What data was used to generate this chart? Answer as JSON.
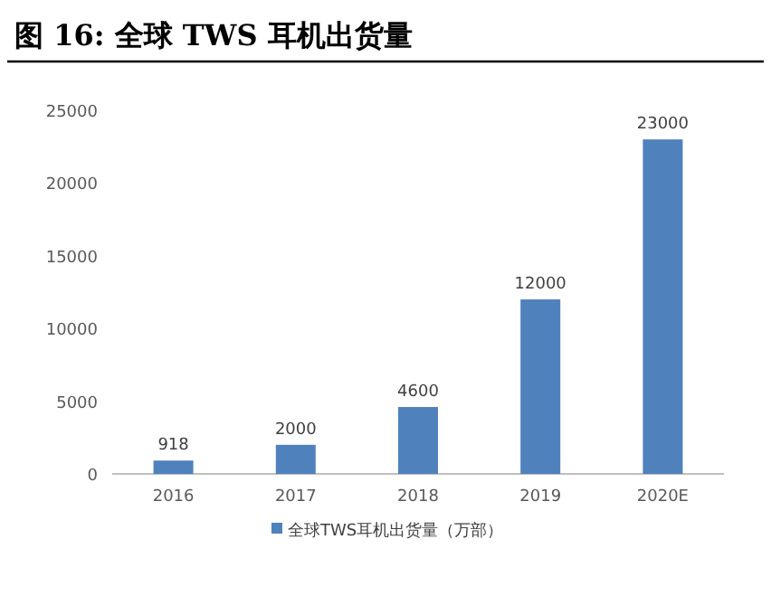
{
  "chart_data": {
    "type": "bar",
    "title": "图 16: 全球 TWS 耳机出货量",
    "categories": [
      "2016",
      "2017",
      "2018",
      "2019",
      "2020E"
    ],
    "series": [
      {
        "name": "全球TWS耳机出货量（万部）",
        "color": "#4f81bd",
        "values": [
          918,
          2000,
          4600,
          12000,
          23000
        ]
      }
    ],
    "ylim": [
      0,
      25000
    ],
    "yticks": [
      0,
      5000,
      10000,
      15000,
      20000,
      25000
    ],
    "data_labels": true,
    "legend": "bottom",
    "grid": false
  }
}
